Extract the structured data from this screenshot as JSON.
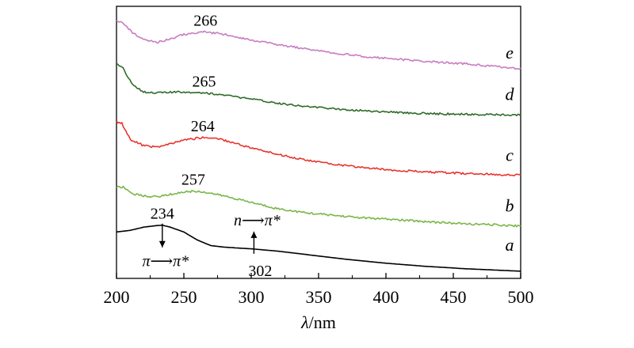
{
  "chart_data": {
    "type": "line",
    "title": "",
    "xlabel_symbol": "λ",
    "xlabel_unit": "/nm",
    "ylabel": "",
    "xlim": [
      200,
      500
    ],
    "x_ticks": [
      200,
      250,
      300,
      350,
      400,
      450,
      500
    ],
    "y_ticks_shown": false,
    "grid": false,
    "legend": "none",
    "series": [
      {
        "name": "a",
        "color": "#000000",
        "points": [
          [
            200,
            0.58
          ],
          [
            210,
            0.6
          ],
          [
            220,
            0.64
          ],
          [
            230,
            0.66
          ],
          [
            234,
            0.665
          ],
          [
            240,
            0.64
          ],
          [
            250,
            0.58
          ],
          [
            260,
            0.48
          ],
          [
            270,
            0.41
          ],
          [
            280,
            0.39
          ],
          [
            290,
            0.38
          ],
          [
            300,
            0.37
          ],
          [
            310,
            0.355
          ],
          [
            320,
            0.34
          ],
          [
            330,
            0.32
          ],
          [
            340,
            0.3
          ],
          [
            350,
            0.28
          ],
          [
            370,
            0.24
          ],
          [
            400,
            0.19
          ],
          [
            430,
            0.15
          ],
          [
            460,
            0.12
          ],
          [
            480,
            0.105
          ],
          [
            500,
            0.09
          ]
        ]
      },
      {
        "name": "b",
        "color": "#7ab648",
        "points": [
          [
            200,
            1.14
          ],
          [
            205,
            1.14
          ],
          [
            212,
            1.06
          ],
          [
            220,
            1.03
          ],
          [
            230,
            1.02
          ],
          [
            240,
            1.05
          ],
          [
            250,
            1.08
          ],
          [
            257,
            1.09
          ],
          [
            265,
            1.08
          ],
          [
            280,
            1.03
          ],
          [
            300,
            0.95
          ],
          [
            320,
            0.87
          ],
          [
            340,
            0.82
          ],
          [
            360,
            0.79
          ],
          [
            380,
            0.76
          ],
          [
            400,
            0.74
          ],
          [
            430,
            0.71
          ],
          [
            460,
            0.68
          ],
          [
            480,
            0.67
          ],
          [
            500,
            0.655
          ]
        ]
      },
      {
        "name": "c",
        "color": "#e8352e",
        "points": [
          [
            200,
            1.96
          ],
          [
            204,
            1.94
          ],
          [
            210,
            1.74
          ],
          [
            220,
            1.66
          ],
          [
            230,
            1.64
          ],
          [
            240,
            1.68
          ],
          [
            250,
            1.73
          ],
          [
            264,
            1.76
          ],
          [
            275,
            1.75
          ],
          [
            290,
            1.68
          ],
          [
            300,
            1.63
          ],
          [
            320,
            1.55
          ],
          [
            340,
            1.48
          ],
          [
            360,
            1.43
          ],
          [
            380,
            1.39
          ],
          [
            400,
            1.36
          ],
          [
            430,
            1.33
          ],
          [
            460,
            1.31
          ],
          [
            480,
            1.3
          ],
          [
            500,
            1.29
          ]
        ]
      },
      {
        "name": "d",
        "color": "#2f6b2a",
        "points": [
          [
            200,
            2.68
          ],
          [
            205,
            2.62
          ],
          [
            212,
            2.42
          ],
          [
            220,
            2.33
          ],
          [
            230,
            2.32
          ],
          [
            250,
            2.33
          ],
          [
            265,
            2.32
          ],
          [
            280,
            2.29
          ],
          [
            300,
            2.24
          ],
          [
            320,
            2.19
          ],
          [
            340,
            2.15
          ],
          [
            360,
            2.12
          ],
          [
            380,
            2.1
          ],
          [
            400,
            2.08
          ],
          [
            430,
            2.06
          ],
          [
            460,
            2.05
          ],
          [
            480,
            2.045
          ],
          [
            500,
            2.04
          ]
        ]
      },
      {
        "name": "e",
        "color": "#c77dc2",
        "points": [
          [
            200,
            3.23
          ],
          [
            205,
            3.18
          ],
          [
            212,
            3.07
          ],
          [
            220,
            2.99
          ],
          [
            230,
            2.95
          ],
          [
            240,
            2.99
          ],
          [
            250,
            3.05
          ],
          [
            266,
            3.08
          ],
          [
            280,
            3.05
          ],
          [
            300,
            2.98
          ],
          [
            320,
            2.92
          ],
          [
            340,
            2.87
          ],
          [
            360,
            2.82
          ],
          [
            380,
            2.78
          ],
          [
            400,
            2.75
          ],
          [
            430,
            2.71
          ],
          [
            460,
            2.68
          ],
          [
            480,
            2.65
          ],
          [
            500,
            2.62
          ]
        ]
      }
    ],
    "peak_labels": [
      {
        "text": "266",
        "x": 266,
        "series": "e"
      },
      {
        "text": "265",
        "x": 265,
        "series": "d"
      },
      {
        "text": "264",
        "x": 264,
        "series": "c"
      },
      {
        "text": "257",
        "x": 257,
        "series": "b"
      },
      {
        "text": "234",
        "x": 234,
        "series": "a"
      }
    ],
    "annotations": [
      {
        "id": "pi",
        "text": "π⟶π*",
        "arrow_x": 234,
        "direction": "down"
      },
      {
        "id": "npi",
        "text": "n⟶π*",
        "label": "302",
        "arrow_x": 302,
        "direction": "up"
      }
    ]
  }
}
